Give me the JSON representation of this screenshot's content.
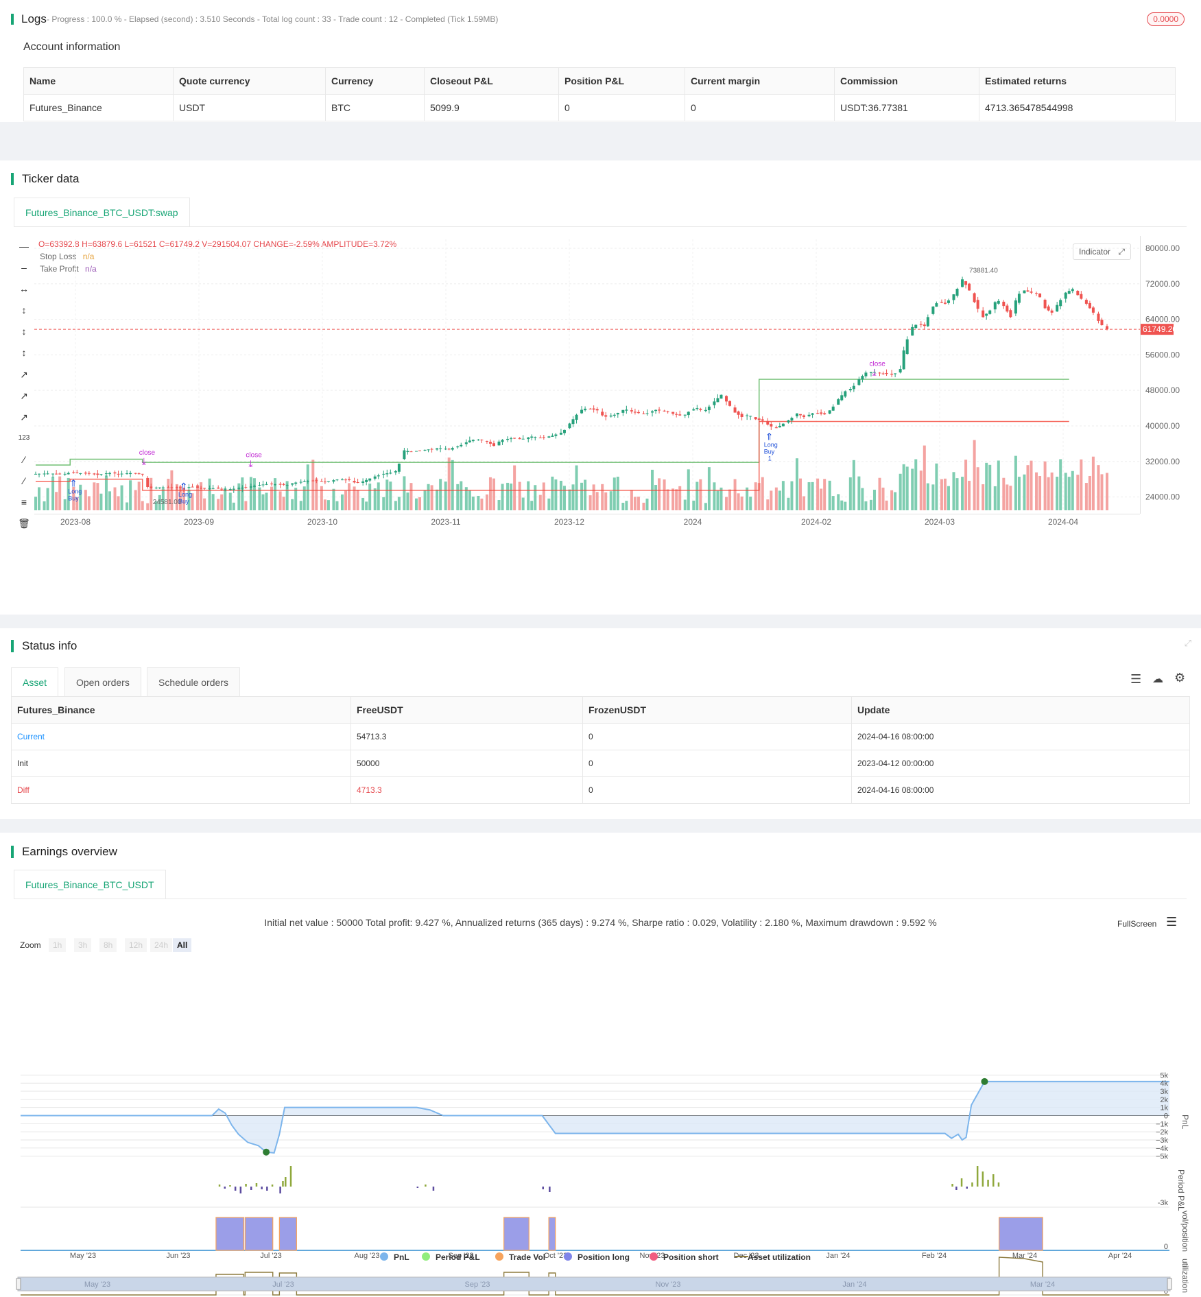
{
  "logs": {
    "title": "Logs",
    "summary": "- Progress : 100.0 % - Elapsed (second) : 3.510  Seconds - Total log count : 33 - Trade count : 12 - Completed (Tick 1.59MB)",
    "badge": "0.0000"
  },
  "account": {
    "title": "Account information",
    "headers": [
      "Name",
      "Quote currency",
      "Currency",
      "Closeout P&L",
      "Position P&L",
      "Current margin",
      "Commission",
      "Estimated returns"
    ],
    "row": [
      "Futures_Binance",
      "USDT",
      "BTC",
      "5099.9",
      "0",
      "0",
      "USDT:36.77381",
      "4713.365478544998"
    ]
  },
  "ticker": {
    "title": "Ticker data",
    "tab": "Futures_Binance_BTC_USDT:swap",
    "ohlc": {
      "o": "O=63392.8",
      "h": "H=63879.6",
      "l": "L=61521",
      "c": "C=61749.2",
      "v": "V=291504.07",
      "change": "CHANGE=-2.59%",
      "amplitude": "AMPLITUDE=3.72%"
    },
    "legend": [
      {
        "name": "Stop Loss",
        "value": "n/a",
        "color": "#e6a23c"
      },
      {
        "name": "Take Profit",
        "value": "n/a",
        "color": "#9b59b6"
      }
    ],
    "indicator_btn": "Indicator",
    "current_price": "61749.20",
    "high_label": "73881.40",
    "low_label": "24581.00",
    "markers": {
      "close": "close",
      "long": "Long",
      "buy": "Buy",
      "one": "1"
    }
  },
  "chart_data": [
    {
      "type": "candlestick",
      "title": "Futures_Binance_BTC_USDT:swap",
      "x_ticks": [
        "2023-08",
        "2023-09",
        "2023-10",
        "2023-11",
        "2023-12",
        "2024",
        "2024-02",
        "2024-03",
        "2024-04"
      ],
      "y_ticks": [
        "80000.00",
        "72000.00",
        "64000.00",
        "56000.00",
        "48000.00",
        "40000.00",
        "32000.00",
        "24000.00"
      ],
      "ylim": [
        21000,
        82000
      ],
      "close_path": [
        [
          0,
          29200
        ],
        [
          8,
          29300
        ],
        [
          16,
          29100
        ],
        [
          20,
          29500
        ],
        [
          24,
          29400
        ],
        [
          28,
          29300
        ],
        [
          32,
          29200
        ],
        [
          36,
          29000
        ],
        [
          40,
          29300
        ],
        [
          44,
          29400
        ],
        [
          48,
          29200
        ],
        [
          52,
          29300
        ],
        [
          56,
          29400
        ],
        [
          60,
          29300
        ],
        [
          62,
          29200
        ],
        [
          64,
          26500
        ],
        [
          66,
          26000
        ],
        [
          70,
          26100
        ],
        [
          76,
          26200
        ],
        [
          80,
          26100
        ],
        [
          86,
          26000
        ],
        [
          90,
          26300
        ],
        [
          96,
          26000
        ],
        [
          100,
          25900
        ],
        [
          104,
          26000
        ],
        [
          110,
          25700
        ],
        [
          114,
          25800
        ],
        [
          118,
          26000
        ],
        [
          124,
          26300
        ],
        [
          130,
          26700
        ],
        [
          136,
          27000
        ],
        [
          140,
          26800
        ],
        [
          146,
          26700
        ],
        [
          150,
          27200
        ],
        [
          156,
          27500
        ],
        [
          162,
          27700
        ],
        [
          168,
          27400
        ],
        [
          176,
          28000
        ],
        [
          182,
          27800
        ],
        [
          186,
          27100
        ],
        [
          190,
          27500
        ],
        [
          196,
          28500
        ],
        [
          202,
          29200
        ],
        [
          208,
          29600
        ],
        [
          210,
          30000
        ],
        [
          212,
          33000
        ],
        [
          214,
          34500
        ],
        [
          218,
          34200
        ],
        [
          226,
          34600
        ],
        [
          234,
          35000
        ],
        [
          240,
          34800
        ],
        [
          246,
          35500
        ],
        [
          252,
          36700
        ],
        [
          256,
          37000
        ],
        [
          262,
          36500
        ],
        [
          266,
          35500
        ],
        [
          270,
          36800
        ],
        [
          276,
          37200
        ],
        [
          282,
          37000
        ],
        [
          288,
          37600
        ],
        [
          294,
          37300
        ],
        [
          300,
          37800
        ],
        [
          306,
          38600
        ],
        [
          312,
          41500
        ],
        [
          316,
          43500
        ],
        [
          320,
          44000
        ],
        [
          326,
          43500
        ],
        [
          330,
          42000
        ],
        [
          336,
          42500
        ],
        [
          342,
          43800
        ],
        [
          348,
          43000
        ],
        [
          354,
          42700
        ],
        [
          360,
          43600
        ],
        [
          366,
          43200
        ],
        [
          372,
          42500
        ],
        [
          376,
          42200
        ],
        [
          380,
          43500
        ],
        [
          384,
          44000
        ],
        [
          388,
          43200
        ],
        [
          394,
          45500
        ],
        [
          398,
          47000
        ],
        [
          402,
          45000
        ],
        [
          406,
          43000
        ],
        [
          410,
          42000
        ],
        [
          414,
          42500
        ],
        [
          418,
          41500
        ],
        [
          422,
          41200
        ],
        [
          426,
          40000
        ],
        [
          430,
          39500
        ],
        [
          434,
          40500
        ],
        [
          438,
          41500
        ],
        [
          442,
          42800
        ],
        [
          446,
          42000
        ],
        [
          452,
          43000
        ],
        [
          458,
          42600
        ],
        [
          462,
          43800
        ],
        [
          466,
          46000
        ],
        [
          470,
          47800
        ],
        [
          474,
          48500
        ],
        [
          478,
          50500
        ],
        [
          482,
          52000
        ],
        [
          486,
          52200
        ],
        [
          492,
          51800
        ],
        [
          498,
          51500
        ],
        [
          502,
          52800
        ],
        [
          504,
          57000
        ],
        [
          508,
          62000
        ],
        [
          512,
          63000
        ],
        [
          516,
          62500
        ],
        [
          520,
          66500
        ],
        [
          524,
          68000
        ],
        [
          528,
          67500
        ],
        [
          532,
          69000
        ],
        [
          536,
          71500
        ],
        [
          538,
          73000
        ],
        [
          542,
          70500
        ],
        [
          546,
          67000
        ],
        [
          550,
          64500
        ],
        [
          554,
          66000
        ],
        [
          558,
          68500
        ],
        [
          562,
          67000
        ],
        [
          566,
          64500
        ],
        [
          570,
          69500
        ],
        [
          574,
          70500
        ],
        [
          578,
          70000
        ],
        [
          582,
          69800
        ],
        [
          586,
          66500
        ],
        [
          590,
          65500
        ],
        [
          594,
          67800
        ],
        [
          598,
          70000
        ],
        [
          602,
          70800
        ],
        [
          606,
          69000
        ],
        [
          610,
          67500
        ],
        [
          614,
          65500
        ],
        [
          618,
          63000
        ],
        [
          622,
          61749
        ]
      ],
      "overlay_lines": [
        {
          "name": "Take Profit",
          "color": "#4caf50",
          "segments": [
            [
              0,
              31200
            ],
            [
              20,
              31200
            ],
            [
              20,
              32500
            ],
            [
              62,
              32500
            ],
            [
              62,
              31800
            ],
            [
              420,
              31800
            ],
            [
              420,
              50500
            ],
            [
              600,
              50500
            ]
          ]
        },
        {
          "name": "Stop Loss",
          "color": "#f44336",
          "segments": [
            [
              0,
              27500
            ],
            [
              20,
              27500
            ],
            [
              20,
              28000
            ],
            [
              62,
              28000
            ],
            [
              62,
              25500
            ],
            [
              420,
              25500
            ],
            [
              420,
              41000
            ],
            [
              600,
              41000
            ]
          ]
        }
      ]
    },
    {
      "type": "line",
      "title": "PnL",
      "x_ticks": [
        "May '23",
        "Jun '23",
        "Jul '23",
        "Aug '23",
        "Sep '23",
        "Oct '23",
        "Nov '23",
        "Dec '23",
        "Jan '24",
        "Feb '24",
        "Mar '24",
        "Apr '24"
      ],
      "y_ticks": [
        "5k",
        "4k",
        "3k",
        "2k",
        "1k",
        "0",
        "-1k",
        "-2k",
        "-3k",
        "-4k",
        "-5k"
      ],
      "ylim": [
        -5200,
        5200
      ],
      "series": [
        {
          "name": "PnL",
          "color": "#7cb5ec",
          "values": [
            [
              0,
              0
            ],
            [
              145,
              0
            ],
            [
              150,
              800
            ],
            [
              155,
              300
            ],
            [
              160,
              -1200
            ],
            [
              165,
              -2300
            ],
            [
              172,
              -3300
            ],
            [
              180,
              -3700
            ],
            [
              186,
              -4500
            ],
            [
              192,
              -4600
            ],
            [
              196,
              -2300
            ],
            [
              200,
              1000
            ],
            [
              300,
              1000
            ],
            [
              310,
              700
            ],
            [
              320,
              0
            ],
            [
              395,
              0
            ],
            [
              405,
              -2200
            ],
            [
              700,
              -2200
            ],
            [
              705,
              -2800
            ],
            [
              710,
              -2300
            ],
            [
              713,
              -3000
            ],
            [
              716,
              -2700
            ],
            [
              720,
              1300
            ],
            [
              730,
              4200
            ],
            [
              870,
              4200
            ]
          ]
        }
      ]
    }
  ],
  "status": {
    "title": "Status info",
    "tabs": [
      "Asset",
      "Open orders",
      "Schedule orders"
    ],
    "headers": [
      "Futures_Binance",
      "FreeUSDT",
      "FrozenUSDT",
      "Update"
    ],
    "rows": [
      {
        "label": "Current",
        "free": "54713.3",
        "frozen": "0",
        "update": "2024-04-16 08:00:00"
      },
      {
        "label": "Init",
        "free": "50000",
        "frozen": "0",
        "update": "2023-04-12 00:00:00"
      },
      {
        "label": "Diff",
        "free": "4713.3",
        "frozen": "0",
        "update": "2024-04-16 08:00:00"
      }
    ]
  },
  "earnings": {
    "title": "Earnings overview",
    "tab": "Futures_Binance_BTC_USDT",
    "summary": "Initial net value : 50000 Total profit: 9.427 %, Annualized returns (365 days) : 9.274 %, Sharpe ratio : 0.029, Volatility : 2.180 %, Maximum drawdown : 9.592 %",
    "fullscreen": "FullScreen",
    "zoom_label": "Zoom",
    "zoom_options": [
      "1h",
      "3h",
      "8h",
      "12h",
      "24h",
      "All"
    ],
    "axis_titles": [
      "PnL",
      "Period P&L",
      "vol/position",
      "utilization"
    ],
    "period_min": "-3k",
    "zero": "0",
    "legend": [
      {
        "name": "PnL",
        "color": "#7cb5ec"
      },
      {
        "name": "Period P&L",
        "color": "#90ed7d"
      },
      {
        "name": "Trade Vol",
        "color": "#f7a35c"
      },
      {
        "name": "Position long",
        "color": "#8085e9"
      },
      {
        "name": "Position short",
        "color": "#f15c80"
      },
      {
        "name": "Asset utilization",
        "color": "#8d7b3e"
      }
    ],
    "navigator_ticks": [
      "May '23",
      "Jul '23",
      "Sep '23",
      "Nov '23",
      "Jan '24",
      "Mar '24"
    ]
  }
}
